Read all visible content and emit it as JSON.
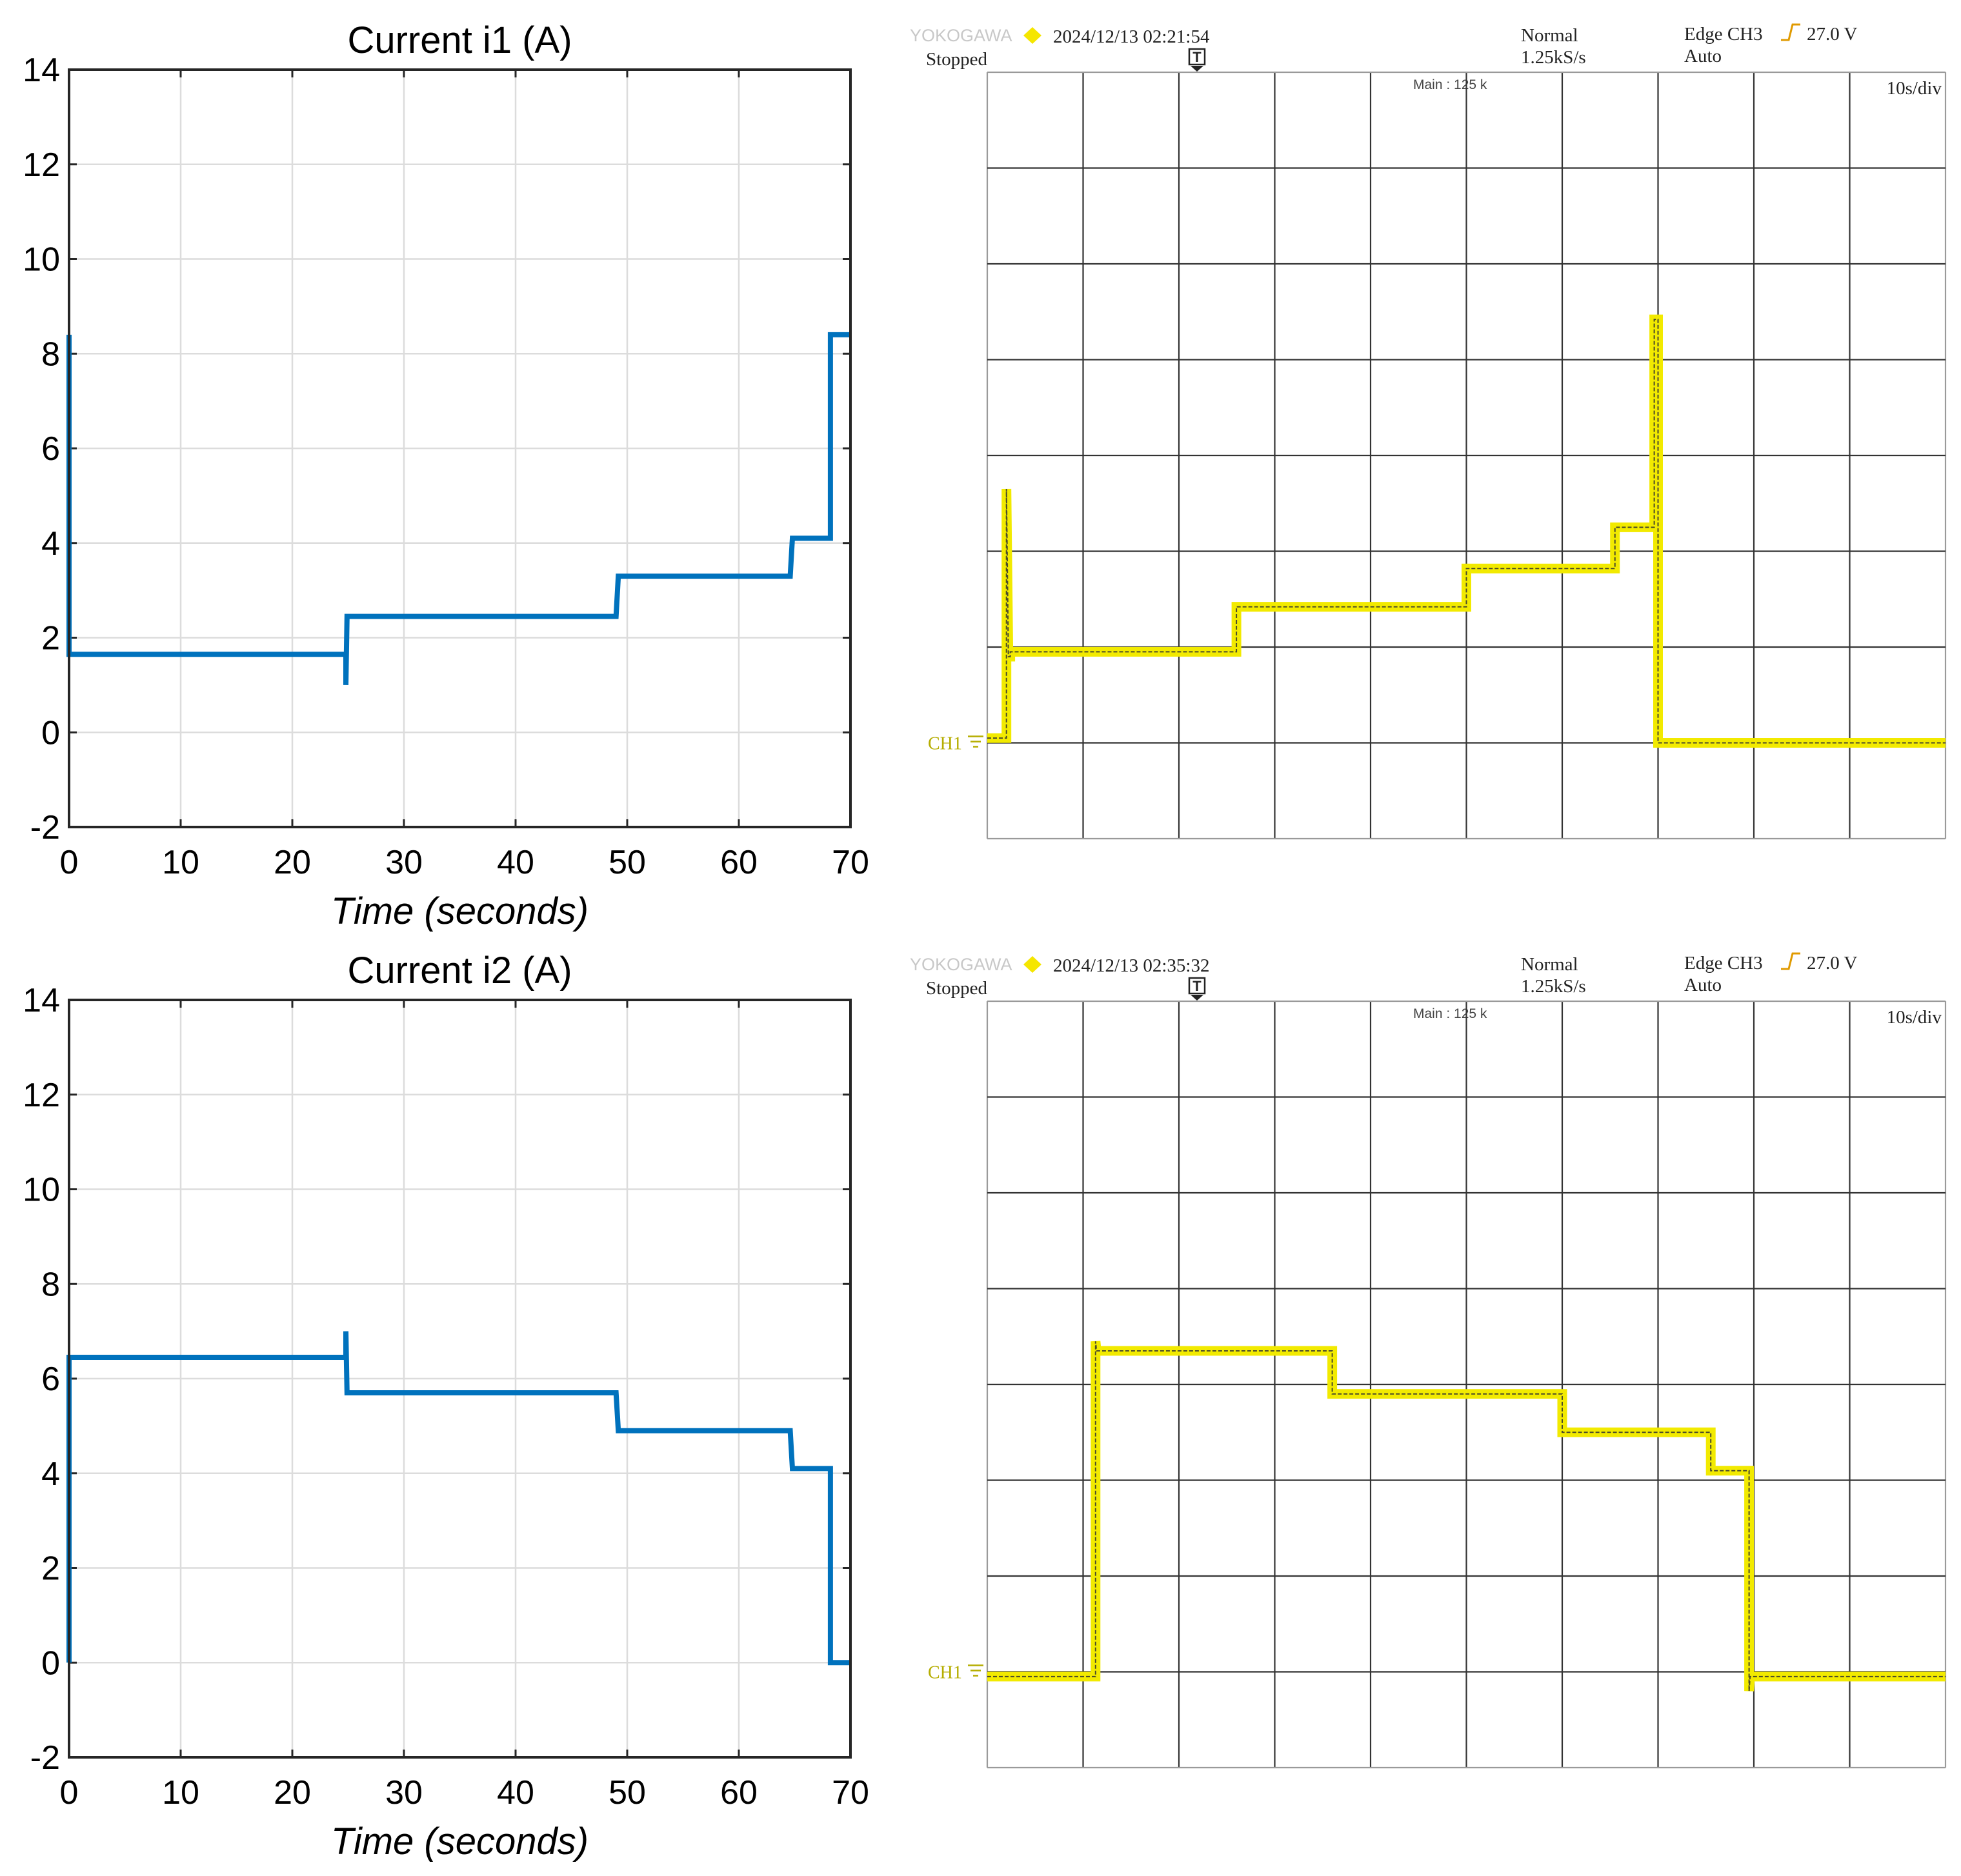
{
  "chart_data": [
    {
      "type": "line",
      "title": "Current i1 (A)",
      "xlabel": "Time (seconds)",
      "ylabel": "",
      "xlim": [
        0,
        70
      ],
      "ylim": [
        -2,
        14
      ],
      "xticks": [
        "0",
        "10",
        "20",
        "30",
        "40",
        "50",
        "60",
        "70"
      ],
      "yticks": [
        "-2",
        "0",
        "2",
        "4",
        "6",
        "8",
        "10",
        "12",
        "14"
      ],
      "grid": true,
      "color": "#0072BD",
      "series": [
        {
          "name": "i1",
          "x": [
            0,
            0,
            0.15,
            24.8,
            24.8,
            24.9,
            25.0,
            49.0,
            49.0,
            49.2,
            64.6,
            64.6,
            64.8,
            68.2,
            68.2,
            68.4,
            70
          ],
          "y": [
            8.4,
            1.65,
            1.65,
            1.65,
            1.0,
            2.45,
            2.45,
            2.45,
            2.45,
            3.3,
            3.3,
            3.3,
            4.1,
            4.1,
            8.4,
            8.4,
            8.4
          ]
        }
      ]
    },
    {
      "type": "line",
      "title": "Current i2 (A)",
      "xlabel": "Time (seconds)",
      "ylabel": "",
      "xlim": [
        0,
        70
      ],
      "ylim": [
        -2,
        14
      ],
      "xticks": [
        "0",
        "10",
        "20",
        "30",
        "40",
        "50",
        "60",
        "70"
      ],
      "yticks": [
        "-2",
        "0",
        "2",
        "4",
        "6",
        "8",
        "10",
        "12",
        "14"
      ],
      "grid": true,
      "color": "#0072BD",
      "series": [
        {
          "name": "i2",
          "x": [
            0,
            0,
            0.15,
            24.8,
            24.8,
            24.9,
            25.0,
            49.0,
            49.0,
            49.2,
            64.6,
            64.6,
            64.8,
            68.2,
            68.2,
            68.4,
            70
          ],
          "y": [
            0,
            6.45,
            6.45,
            6.45,
            7.0,
            5.7,
            5.7,
            5.7,
            5.7,
            4.9,
            4.9,
            4.9,
            4.1,
            4.1,
            0,
            0,
            0
          ]
        }
      ]
    }
  ],
  "scopes": [
    {
      "brand": "YOKOGAWA",
      "datetime": "2024/12/13 02:21:54",
      "status": "Stopped",
      "mode": "Normal",
      "sample_rate": "1.25kS/s",
      "trigger": "Edge CH3",
      "trigger_level": "27.0 V",
      "trigger_mode": "Auto",
      "trigger_marker": "T",
      "memory": "Main : 125 k",
      "timebase": "10s/div",
      "channel": "CH1",
      "trace_color": "#f2ea00",
      "divisions": 10,
      "rows": 8,
      "zero_row": 7,
      "trace": {
        "t": [
          0,
          2.0,
          2.0,
          2.2,
          2.4,
          2.4,
          26.0,
          26.0,
          50.0,
          50.0,
          65.5,
          65.5,
          69.6,
          69.6,
          70.0,
          70.0,
          100
        ],
        "v": [
          0.05,
          0.05,
          2.65,
          0.9,
          0.9,
          0.95,
          0.95,
          1.42,
          1.42,
          1.82,
          1.82,
          2.25,
          2.25,
          4.42,
          4.42,
          0,
          0
        ]
      }
    },
    {
      "brand": "YOKOGAWA",
      "datetime": "2024/12/13 02:35:32",
      "status": "Stopped",
      "mode": "Normal",
      "sample_rate": "1.25kS/s",
      "trigger": "Edge CH3",
      "trigger_level": "27.0 V",
      "trigger_mode": "Auto",
      "trigger_marker": "T",
      "memory": "Main : 125 k",
      "timebase": "10s/div",
      "channel": "CH1",
      "trace_color": "#f2ea00",
      "divisions": 10,
      "rows": 8,
      "zero_row": 7,
      "trace": {
        "t": [
          0,
          11.3,
          11.3,
          11.4,
          11.6,
          36.0,
          36.0,
          60.0,
          60.0,
          75.5,
          75.5,
          79.5,
          79.5,
          79.6,
          79.8,
          100
        ],
        "v": [
          -0.05,
          -0.05,
          3.45,
          3.35,
          3.35,
          3.35,
          2.9,
          2.9,
          2.5,
          2.5,
          2.1,
          2.1,
          -0.2,
          -0.05,
          -0.05,
          -0.05
        ]
      }
    }
  ]
}
